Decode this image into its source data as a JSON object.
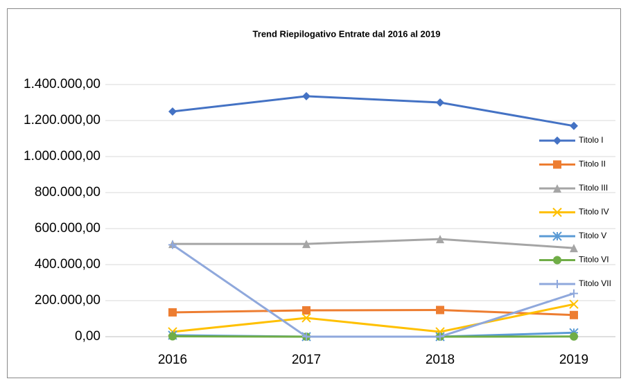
{
  "chart_data": {
    "type": "line",
    "title": "Trend Riepilogativo Entrate dal 2016 al 2019",
    "categories": [
      "2016",
      "2017",
      "2018",
      "2019"
    ],
    "series": [
      {
        "name": "Titolo I",
        "color": "#4472c4",
        "marker": "diamond",
        "values": [
          1250000,
          1335000,
          1300000,
          1170000
        ]
      },
      {
        "name": "Titolo II",
        "color": "#ed7d31",
        "marker": "square",
        "values": [
          135000,
          146000,
          148000,
          120000
        ]
      },
      {
        "name": "Titolo III",
        "color": "#a5a5a5",
        "marker": "triangle",
        "values": [
          515000,
          515000,
          542000,
          492000
        ]
      },
      {
        "name": "Titolo IV",
        "color": "#ffc000",
        "marker": "x",
        "values": [
          27000,
          104000,
          27000,
          180000
        ]
      },
      {
        "name": "Titolo V",
        "color": "#5b9bd5",
        "marker": "star",
        "values": [
          8000,
          0,
          0,
          22000
        ]
      },
      {
        "name": "Titolo VI",
        "color": "#70ad47",
        "marker": "circle",
        "values": [
          2000,
          0,
          0,
          1000
        ]
      },
      {
        "name": "Titolo VII",
        "color": "#8fa8dc",
        "marker": "plus",
        "values": [
          510000,
          0,
          0,
          240000
        ]
      }
    ],
    "ylim": [
      0,
      1400000
    ],
    "yticks": [
      {
        "value": 0,
        "label": "0,00"
      },
      {
        "value": 200000,
        "label": "200.000,00"
      },
      {
        "value": 400000,
        "label": "400.000,00"
      },
      {
        "value": 600000,
        "label": "600.000,00"
      },
      {
        "value": 800000,
        "label": "800.000,00"
      },
      {
        "value": 1000000,
        "label": "1.000.000,00"
      },
      {
        "value": 1200000,
        "label": "1.200.000,00"
      },
      {
        "value": 1400000,
        "label": "1.400.000,00"
      }
    ],
    "grid": true,
    "legend": "right"
  }
}
